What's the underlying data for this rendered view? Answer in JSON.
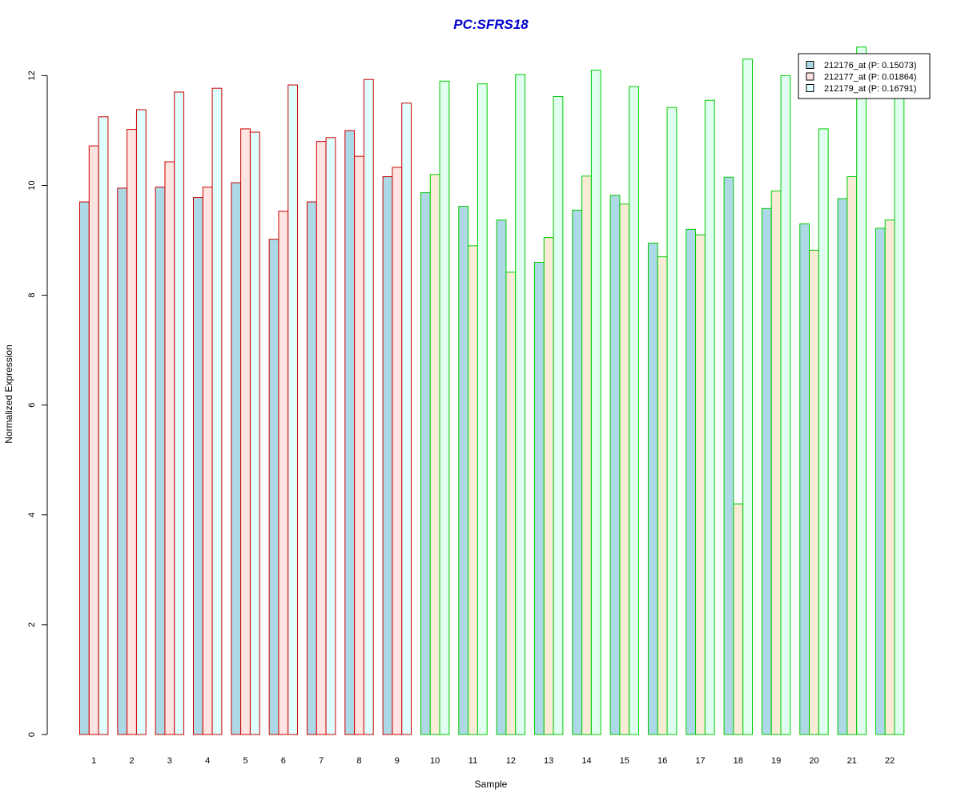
{
  "colors": {
    "title": "#0000CC",
    "group1_border": "#CC0000",
    "group2_border": "#00CC00",
    "series_fill": [
      "#ADD8E6",
      "#FFE4E1",
      "#E0FFFF"
    ],
    "series_fill_group2": [
      "#ADD8E6",
      "#FAEBD7",
      "#E0FFF0"
    ]
  },
  "chart_data": {
    "type": "bar",
    "title": "PC:SFRS18",
    "xlabel": "Sample",
    "ylabel": "Normalized Expression",
    "ylim": [
      0,
      12
    ],
    "yticks": [
      "0",
      "2",
      "4",
      "6",
      "8",
      "10",
      "12"
    ],
    "grid": false,
    "legend_position": "top-right",
    "categories": [
      "1",
      "2",
      "3",
      "4",
      "5",
      "6",
      "7",
      "8",
      "9",
      "10",
      "11",
      "12",
      "13",
      "14",
      "15",
      "16",
      "17",
      "18",
      "19",
      "20",
      "21",
      "22"
    ],
    "group_of_category": [
      1,
      1,
      1,
      1,
      1,
      1,
      1,
      1,
      1,
      2,
      2,
      2,
      2,
      2,
      2,
      2,
      2,
      2,
      2,
      2,
      2,
      2
    ],
    "series": [
      {
        "name": "212176_at (P: 0.15073)",
        "values": [
          9.7,
          9.95,
          9.97,
          9.78,
          10.05,
          9.02,
          9.7,
          11.0,
          10.16,
          9.87,
          9.62,
          9.37,
          8.6,
          9.55,
          9.82,
          8.95,
          9.2,
          10.15,
          9.58,
          9.3,
          9.76,
          9.22
        ]
      },
      {
        "name": "212177_at (P: 0.01864)",
        "values": [
          10.72,
          11.02,
          10.43,
          9.97,
          11.03,
          9.53,
          10.8,
          10.53,
          10.33,
          10.2,
          8.9,
          8.42,
          9.05,
          10.17,
          9.66,
          8.7,
          9.1,
          4.2,
          9.9,
          8.82,
          10.16,
          9.37
        ]
      },
      {
        "name": "212179_at (P: 0.16791)",
        "values": [
          11.25,
          11.38,
          11.7,
          11.77,
          10.97,
          11.83,
          10.87,
          11.93,
          11.5,
          11.9,
          11.85,
          12.02,
          11.62,
          12.1,
          11.8,
          11.42,
          11.55,
          12.3,
          12.0,
          11.03,
          12.52,
          11.65
        ]
      }
    ]
  }
}
